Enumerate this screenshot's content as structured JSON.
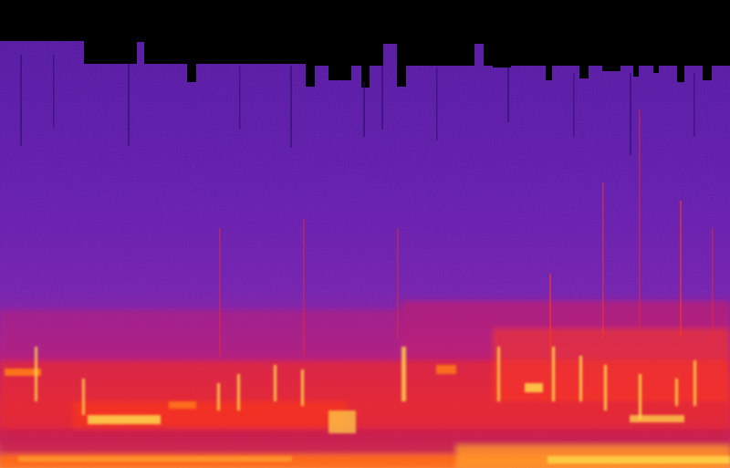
{
  "image": {
    "kind": "spectrogram",
    "colormap": [
      "#000000",
      "#2a0a6e",
      "#5a1a9e",
      "#8a2aa8",
      "#c21a6a",
      "#ee2a2a",
      "#ff7a1a",
      "#ffd84a",
      "#fff6b0"
    ],
    "background_color": "#000000",
    "noise_floor_color": "#6a2ab0",
    "band_colors": {
      "low_noise": "#8a22a0",
      "mid": "#d01e5a",
      "hot": "#ff3a1a",
      "peak": "#ffe060"
    }
  }
}
